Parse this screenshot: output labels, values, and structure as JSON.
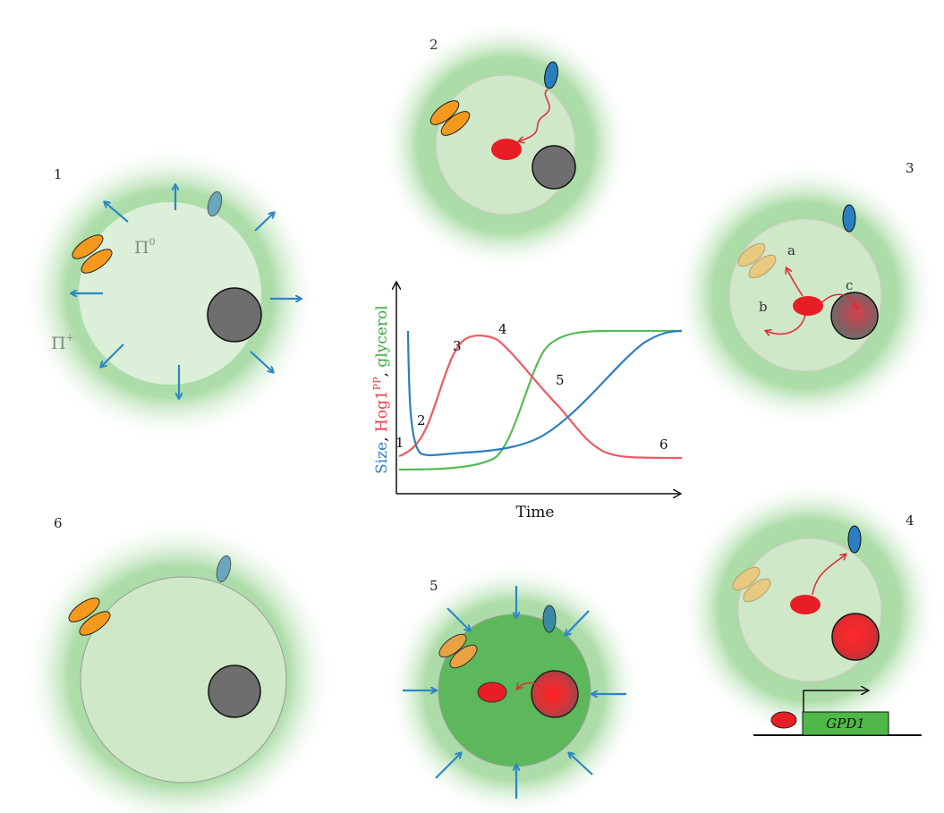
{
  "colors": {
    "halo": "#9fd59a",
    "cell_light": "#dcefd8",
    "cell_mid": "#cfe8c8",
    "cell_dark": "#5cb85a",
    "nucleus": "#6e6e6e",
    "nucleus_active": "#e8262b",
    "hog1": "#e81d25",
    "sensor_orange": "#f39a1e",
    "sensor_blue": "#2b7fc0",
    "arrow_blue": "#2b86c6",
    "size_curve": "#2b7fc0",
    "hog1_curve": "#ee5a62",
    "glycerol_curve": "#55bb55",
    "gene_box": "#4fb848"
  },
  "panels": {
    "p1": {
      "number": "1",
      "pi_inside": "Π",
      "pi_inside_sup": "0",
      "pi_outside": "Π",
      "pi_outside_sup": "+"
    },
    "p2": {
      "number": "2"
    },
    "p3": {
      "number": "3",
      "label_a": "a",
      "label_b": "b",
      "label_c": "c"
    },
    "p4": {
      "number": "4",
      "gene": "GPD1"
    },
    "p5": {
      "number": "5"
    },
    "p6": {
      "number": "6"
    }
  },
  "graph": {
    "xlabel": "Time",
    "ylabel_size": "Size",
    "ylabel_comma1": ", ",
    "ylabel_hog1": "Hog1",
    "ylabel_hog1_sup": "PP",
    "ylabel_comma2": ", ",
    "ylabel_glycerol": "glycerol",
    "markers": [
      "1",
      "2",
      "3",
      "4",
      "5",
      "6"
    ]
  }
}
